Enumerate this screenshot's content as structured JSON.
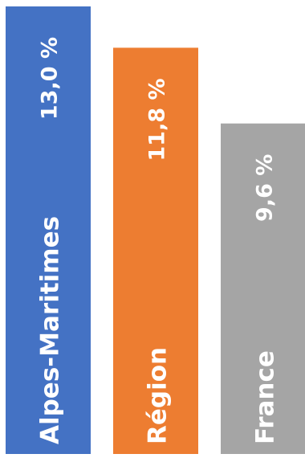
{
  "chart_data": {
    "type": "bar",
    "orientation": "vertical",
    "categories": [
      "Alpes-Maritimes",
      "Région",
      "France"
    ],
    "values": [
      13.0,
      11.8,
      9.6
    ],
    "value_labels": [
      "13,0 %",
      "11,8 %",
      "9,6 %"
    ],
    "colors": [
      "#4472C4",
      "#ED7D31",
      "#A5A5A5"
    ],
    "label_color": "#FFFFFF",
    "text_orientation": "rotated-vertical",
    "title": "",
    "xlabel": "",
    "ylabel": "",
    "ylim": [
      0,
      13.0
    ],
    "grid": false,
    "legend": "none"
  }
}
